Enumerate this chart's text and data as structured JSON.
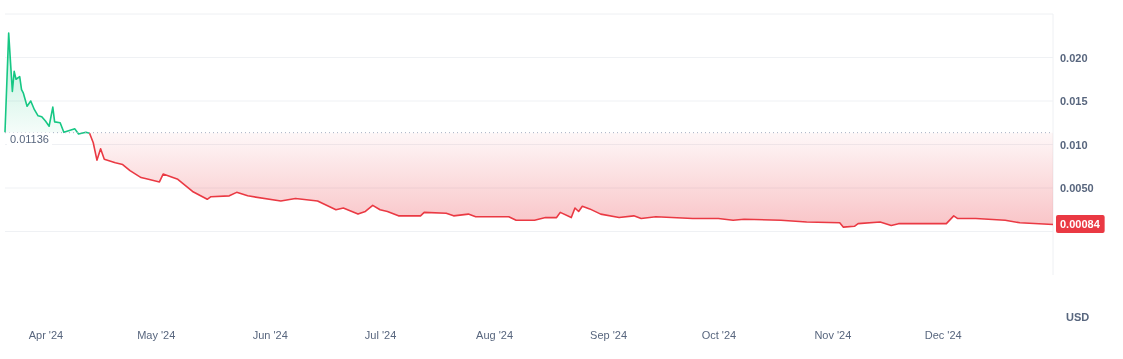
{
  "chart_data": {
    "type": "line",
    "ylabel": "USD",
    "xlim": [
      "2024-03-21",
      "2024-12-31"
    ],
    "xticks": [
      {
        "value": "2024-04-01",
        "label": "Apr '24"
      },
      {
        "value": "2024-05-01",
        "label": "May '24"
      },
      {
        "value": "2024-06-01",
        "label": "Jun '24"
      },
      {
        "value": "2024-07-01",
        "label": "Jul '24"
      },
      {
        "value": "2024-08-01",
        "label": "Aug '24"
      },
      {
        "value": "2024-09-01",
        "label": "Sep '24"
      },
      {
        "value": "2024-10-01",
        "label": "Oct '24"
      },
      {
        "value": "2024-11-01",
        "label": "Nov '24"
      },
      {
        "value": "2024-12-01",
        "label": "Dec '24"
      }
    ],
    "ylim": [
      -0.005,
      0.025
    ],
    "yticks": [
      {
        "value": 0,
        "label": null
      },
      {
        "value": 0.005,
        "label": "0.0050"
      },
      {
        "value": 0.01,
        "label": "0.010"
      },
      0.015,
      {
        "value": 0.02,
        "label": "0.020"
      }
    ],
    "grid": "y",
    "ref_lines": [
      {
        "axis": "y",
        "value": 0.01136,
        "label": "0.01136",
        "color": "#a6b0c3",
        "line_style": "dotted"
      }
    ],
    "annotations": [
      {
        "text": "0.00084",
        "x": "2024-12-31",
        "y": 0.00084
      }
    ],
    "series": [
      {
        "color": "#16c784",
        "x": [
          "2024-03-21",
          "2024-03-22",
          "2024-03-23",
          "2024-03-23T12:00",
          "2024-03-24",
          "2024-03-25",
          "2024-03-25T12:00",
          "2024-03-26",
          "2024-03-27",
          "2024-03-28",
          "2024-03-29",
          "2024-03-30",
          "2024-03-31",
          "2024-04-01",
          "2024-04-02",
          "2024-04-03",
          "2024-04-03T12:00",
          "2024-04-05",
          "2024-04-06",
          "2024-04-09",
          "2024-04-10",
          "2024-04-12",
          "2024-04-13"
        ],
        "values": [
          0.0114,
          0.0228,
          0.0161,
          0.0184,
          0.0175,
          0.0178,
          0.0163,
          0.0159,
          0.0144,
          0.015,
          0.014,
          0.0133,
          0.0132,
          0.0127,
          0.0121,
          0.0143,
          0.0126,
          0.0125,
          0.0114,
          0.0118,
          0.0112,
          0.0114,
          0.0113
        ]
      },
      {
        "color": "#ea3943",
        "x": [
          "2024-04-13",
          "2024-04-14",
          "2024-04-15",
          "2024-04-16",
          "2024-04-17",
          "2024-04-20",
          "2024-04-22",
          "2024-04-24",
          "2024-04-27",
          "2024-04-29",
          "2024-05-02",
          "2024-05-03",
          "2024-05-07",
          "2024-05-11",
          "2024-05-15",
          "2024-05-16",
          "2024-05-21",
          "2024-05-23",
          "2024-05-26",
          "2024-06-04",
          "2024-06-08",
          "2024-06-14",
          "2024-06-19",
          "2024-06-21",
          "2024-06-25",
          "2024-06-27",
          "2024-06-29",
          "2024-07-01",
          "2024-07-03",
          "2024-07-06",
          "2024-07-12",
          "2024-07-13",
          "2024-07-19",
          "2024-07-21",
          "2024-07-25",
          "2024-07-27",
          "2024-08-05",
          "2024-08-07",
          "2024-08-12",
          "2024-08-15",
          "2024-08-18",
          "2024-08-19",
          "2024-08-22",
          "2024-08-23",
          "2024-08-24",
          "2024-08-25",
          "2024-08-27",
          "2024-08-30",
          "2024-09-04",
          "2024-09-08",
          "2024-09-10",
          "2024-09-14",
          "2024-09-24",
          "2024-10-01",
          "2024-10-05",
          "2024-10-08",
          "2024-10-18",
          "2024-10-25",
          "2024-11-03",
          "2024-11-04",
          "2024-11-07",
          "2024-11-08",
          "2024-11-14",
          "2024-11-17",
          "2024-11-19",
          "2024-12-02",
          "2024-12-04",
          "2024-12-05",
          "2024-12-10",
          "2024-12-18",
          "2024-12-22",
          "2024-12-31"
        ],
        "values": [
          0.0113,
          0.0102,
          0.0082,
          0.0095,
          0.0083,
          0.0079,
          0.0077,
          0.007,
          0.0062,
          0.006,
          0.0057,
          0.0066,
          0.006,
          0.0046,
          0.0037,
          0.004,
          0.0041,
          0.0045,
          0.0041,
          0.0035,
          0.0038,
          0.0035,
          0.0025,
          0.0027,
          0.002,
          0.0023,
          0.003,
          0.0025,
          0.0023,
          0.0018,
          0.0018,
          0.0022,
          0.0021,
          0.0018,
          0.002,
          0.0017,
          0.0017,
          0.0013,
          0.0013,
          0.0016,
          0.0016,
          0.0022,
          0.0016,
          0.0027,
          0.0023,
          0.0029,
          0.0026,
          0.002,
          0.0016,
          0.0018,
          0.0015,
          0.0017,
          0.0015,
          0.0015,
          0.0013,
          0.0014,
          0.0013,
          0.0011,
          0.001,
          0.0005,
          0.0006,
          0.0009,
          0.0011,
          0.0007,
          0.0009,
          0.0009,
          0.0018,
          0.0015,
          0.0015,
          0.0013,
          0.001,
          0.0008
        ]
      }
    ]
  }
}
